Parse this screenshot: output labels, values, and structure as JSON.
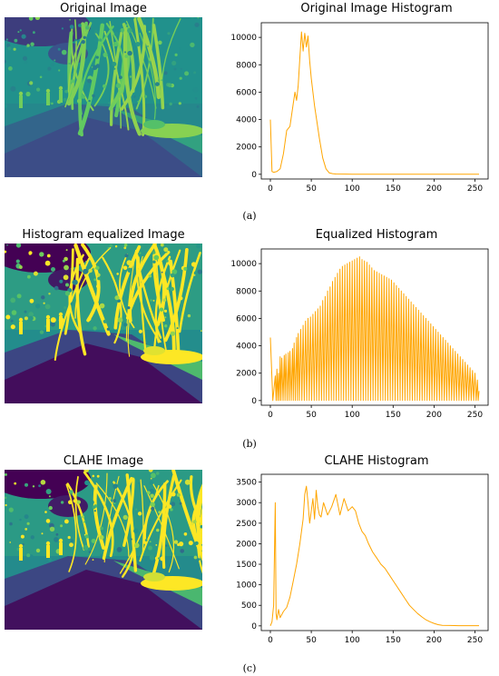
{
  "panels": [
    {
      "caption": "(a)",
      "image_title": "Original Image",
      "hist_title": "Original Image Histogram"
    },
    {
      "caption": "(b)",
      "image_title": "Histogram equalized Image",
      "hist_title": "Equalized Histogram"
    },
    {
      "caption": "(c)",
      "image_title": "CLAHE Image",
      "hist_title": "CLAHE Histogram"
    }
  ],
  "colors": {
    "line": "#ffa500",
    "thermal_dark": "#3b0f70",
    "thermal_mid": "#21918c",
    "thermal_bright": "#fde725"
  },
  "chart_data": [
    {
      "type": "line",
      "title": "Original Image Histogram",
      "xlim": [
        0,
        255
      ],
      "ylim": [
        0,
        10500
      ],
      "xticks": [
        0,
        50,
        100,
        150,
        200,
        250
      ],
      "yticks": [
        0,
        2000,
        4000,
        6000,
        8000,
        10000
      ],
      "series": [
        {
          "x": [
            0,
            2,
            4,
            8,
            12,
            16,
            20,
            24,
            28,
            30,
            32,
            34,
            36,
            38,
            40,
            42,
            44,
            46,
            48,
            50,
            52,
            54,
            56,
            60,
            64,
            68,
            72,
            76,
            80,
            100,
            150,
            200,
            255
          ],
          "values": [
            4000,
            200,
            150,
            200,
            400,
            1500,
            3200,
            3500,
            5200,
            6000,
            5400,
            6500,
            8500,
            10400,
            9000,
            10300,
            9300,
            10100,
            8300,
            7000,
            6000,
            5000,
            4200,
            2600,
            1200,
            400,
            100,
            50,
            20,
            10,
            10,
            10,
            10
          ]
        }
      ]
    },
    {
      "type": "line",
      "title": "Equalized Histogram",
      "xlim": [
        0,
        255
      ],
      "ylim": [
        0,
        10500
      ],
      "xticks": [
        0,
        50,
        100,
        150,
        200,
        250
      ],
      "yticks": [
        0,
        2000,
        4000,
        6000,
        8000,
        10000
      ],
      "series": [
        {
          "x": [
            0,
            6,
            8,
            10,
            12,
            14,
            17,
            19,
            22,
            24,
            27,
            29,
            32,
            34,
            37,
            40,
            43,
            46,
            49,
            52,
            55,
            58,
            61,
            64,
            67,
            70,
            73,
            76,
            79,
            82,
            85,
            88,
            91,
            94,
            97,
            100,
            103,
            106,
            109,
            112,
            115,
            118,
            121,
            124,
            127,
            130,
            133,
            136,
            139,
            142,
            145,
            148,
            151,
            154,
            157,
            160,
            163,
            166,
            169,
            172,
            175,
            178,
            181,
            184,
            187,
            190,
            193,
            196,
            199,
            202,
            205,
            208,
            211,
            214,
            217,
            220,
            223,
            226,
            229,
            232,
            235,
            238,
            241,
            244,
            247,
            250,
            253,
            255
          ],
          "values": [
            4600,
            1800,
            2300,
            2000,
            3200,
            3100,
            3300,
            3400,
            3500,
            3600,
            3800,
            4200,
            4600,
            4900,
            5200,
            5500,
            5800,
            6000,
            6100,
            6300,
            6500,
            6700,
            6900,
            7300,
            7600,
            8000,
            8300,
            8700,
            9000,
            9300,
            9600,
            9800,
            9900,
            10000,
            10100,
            10200,
            10300,
            10400,
            10500,
            10300,
            10200,
            10100,
            9900,
            9700,
            9500,
            9400,
            9300,
            9200,
            9100,
            9000,
            8900,
            8800,
            8600,
            8400,
            8200,
            8000,
            7800,
            7600,
            7400,
            7200,
            7000,
            6800,
            6600,
            6400,
            6200,
            6000,
            5800,
            5600,
            5400,
            5200,
            5000,
            4800,
            4600,
            4400,
            4200,
            4000,
            3800,
            3600,
            3400,
            3200,
            3000,
            2800,
            2600,
            2400,
            2200,
            2000,
            1500,
            700
          ]
        }
      ]
    },
    {
      "type": "line",
      "title": "CLAHE Histogram",
      "xlim": [
        0,
        255
      ],
      "ylim": [
        0,
        3500
      ],
      "xticks": [
        0,
        50,
        100,
        150,
        200,
        250
      ],
      "yticks": [
        0,
        500,
        1000,
        1500,
        2000,
        2500,
        3000,
        3500
      ],
      "series": [
        {
          "x": [
            0,
            2,
            4,
            6,
            7,
            8,
            10,
            12,
            16,
            20,
            24,
            28,
            32,
            36,
            40,
            42,
            44,
            46,
            48,
            50,
            52,
            54,
            56,
            58,
            60,
            62,
            65,
            70,
            75,
            80,
            85,
            90,
            95,
            100,
            104,
            108,
            112,
            116,
            120,
            125,
            130,
            135,
            140,
            145,
            150,
            155,
            160,
            165,
            170,
            175,
            180,
            185,
            190,
            195,
            200,
            205,
            210,
            220,
            230,
            240,
            250,
            255
          ],
          "values": [
            0,
            100,
            500,
            3000,
            300,
            150,
            400,
            200,
            350,
            450,
            700,
            1100,
            1500,
            2000,
            2600,
            3200,
            3400,
            3000,
            2500,
            2800,
            3100,
            2600,
            3300,
            2900,
            2700,
            2650,
            3000,
            2700,
            2900,
            3200,
            2700,
            3100,
            2800,
            2900,
            2800,
            2500,
            2300,
            2200,
            2000,
            1800,
            1650,
            1500,
            1400,
            1250,
            1100,
            950,
            800,
            650,
            500,
            400,
            300,
            220,
            150,
            100,
            60,
            30,
            15,
            10,
            5,
            5,
            5,
            5
          ]
        }
      ]
    }
  ]
}
